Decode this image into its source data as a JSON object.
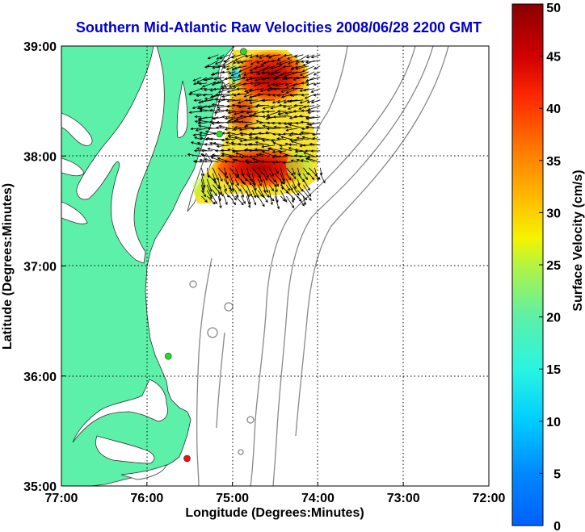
{
  "chart_data": {
    "type": "heatmap",
    "title": "Southern Mid-Atlantic Raw Velocities 2008/06/28 2200 GMT",
    "xlabel": "Longitude (Degrees:Minutes)",
    "ylabel": "Latitude (Degrees:Minutes)",
    "colorbar_label": "Surface Velocity (cm/s)",
    "xlim": [
      -77,
      -72
    ],
    "ylim": [
      35,
      39
    ],
    "x_ticks": [
      {
        "value": -77,
        "label": "77:00"
      },
      {
        "value": -76,
        "label": "76:00"
      },
      {
        "value": -75,
        "label": "75:00"
      },
      {
        "value": -74,
        "label": "74:00"
      },
      {
        "value": -73,
        "label": "73:00"
      },
      {
        "value": -72,
        "label": "72:00"
      }
    ],
    "y_ticks": [
      {
        "value": 35,
        "label": "35:00"
      },
      {
        "value": 36,
        "label": "36:00"
      },
      {
        "value": 37,
        "label": "37:00"
      },
      {
        "value": 38,
        "label": "38:00"
      },
      {
        "value": 39,
        "label": "39:00"
      }
    ],
    "colorbar_ticks": [
      0,
      5,
      10,
      15,
      20,
      25,
      30,
      35,
      40,
      45,
      50
    ],
    "colorbar_range": [
      0,
      50
    ],
    "grid": true,
    "colors": {
      "land": "#5cf0a8",
      "water": "#ffffff",
      "contour": "#888888",
      "station_green": "#22dd22",
      "station_red": "#ee1111"
    },
    "stations": [
      {
        "lon": -74.87,
        "lat": 38.95,
        "color": "green"
      },
      {
        "lon": -75.15,
        "lat": 38.2,
        "color": "green"
      },
      {
        "lon": -75.75,
        "lat": 36.18,
        "color": "green"
      },
      {
        "lon": -75.53,
        "lat": 35.25,
        "color": "red"
      }
    ],
    "velocity_region": {
      "lon_range": [
        -75.4,
        -73.95
      ],
      "lat_range": [
        37.6,
        38.95
      ]
    }
  }
}
